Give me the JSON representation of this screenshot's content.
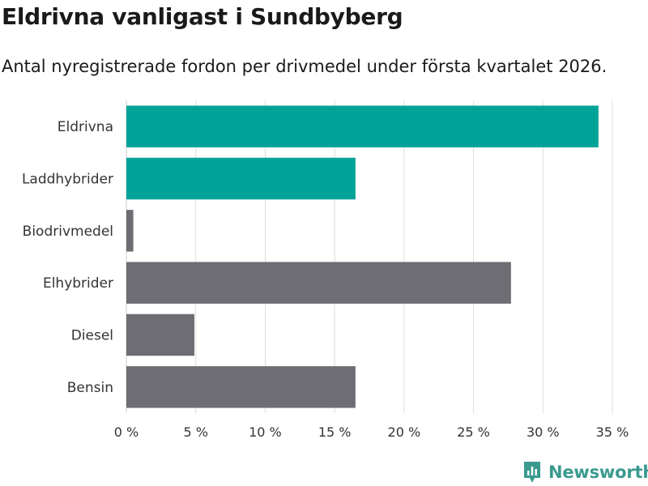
{
  "title": "Eldrivna vanligast i Sundbyberg",
  "subtitle": "Antal nyregistrerade fordon per drivmedel under första kvartalet 2026.",
  "brand": {
    "name": "Newsworthy",
    "icon": "newsworthy-logo-icon"
  },
  "colors": {
    "highlight": "#00a398",
    "base": "#6e6d74",
    "grid": "#dddddd",
    "brand": "#3a9a8f"
  },
  "chart_data": {
    "type": "bar",
    "orientation": "horizontal",
    "categories": [
      "Eldrivna",
      "Laddhybrider",
      "Biodrivmedel",
      "Elhybrider",
      "Diesel",
      "Bensin"
    ],
    "values": [
      34.0,
      16.5,
      0.5,
      27.7,
      4.9,
      16.5
    ],
    "highlighted": [
      true,
      true,
      false,
      false,
      false,
      false
    ],
    "xlim": [
      0,
      35
    ],
    "xticks": [
      0,
      5,
      10,
      15,
      20,
      25,
      30,
      35
    ],
    "xtick_labels": [
      "0 %",
      "5 %",
      "10 %",
      "15 %",
      "20 %",
      "25 %",
      "30 %",
      "35 %"
    ],
    "xlabel": "",
    "ylabel": "",
    "grid": true
  }
}
